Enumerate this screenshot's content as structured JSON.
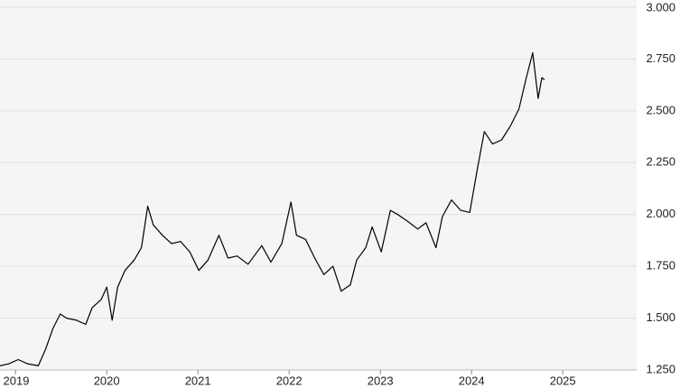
{
  "chart_data": {
    "type": "line",
    "x": [
      2018.83,
      2018.93,
      2019.03,
      2019.13,
      2019.25,
      2019.33,
      2019.41,
      2019.49,
      2019.56,
      2019.67,
      2019.77,
      2019.84,
      2019.94,
      2020.0,
      2020.06,
      2020.12,
      2020.2,
      2020.3,
      2020.38,
      2020.45,
      2020.51,
      2020.61,
      2020.71,
      2020.81,
      2020.91,
      2021.01,
      2021.11,
      2021.23,
      2021.33,
      2021.43,
      2021.55,
      2021.7,
      2021.8,
      2021.92,
      2022.02,
      2022.08,
      2022.18,
      2022.28,
      2022.38,
      2022.48,
      2022.57,
      2022.67,
      2022.74,
      2022.84,
      2022.91,
      2023.01,
      2023.11,
      2023.19,
      2023.29,
      2023.41,
      2023.5,
      2023.61,
      2023.68,
      2023.78,
      2023.88,
      2023.98,
      2024.06,
      2024.14,
      2024.23,
      2024.33,
      2024.43,
      2024.52,
      2024.6,
      2024.67,
      2024.73,
      2024.77,
      2024.8
    ],
    "series": [
      {
        "color": "#000000",
        "values": [
          1.27,
          1.28,
          1.3,
          1.28,
          1.27,
          1.35,
          1.45,
          1.52,
          1.5,
          1.49,
          1.47,
          1.55,
          1.59,
          1.65,
          1.49,
          1.65,
          1.73,
          1.78,
          1.84,
          2.04,
          1.95,
          1.9,
          1.86,
          1.87,
          1.82,
          1.73,
          1.78,
          1.9,
          1.79,
          1.8,
          1.76,
          1.85,
          1.77,
          1.86,
          2.06,
          1.9,
          1.88,
          1.79,
          1.71,
          1.75,
          1.63,
          1.66,
          1.78,
          1.84,
          1.94,
          1.82,
          2.02,
          2.0,
          1.97,
          1.93,
          1.96,
          1.84,
          1.99,
          2.07,
          2.02,
          2.01,
          2.21,
          2.4,
          2.34,
          2.36,
          2.43,
          2.51,
          2.66,
          2.78,
          2.56,
          2.66,
          2.65
        ]
      }
    ],
    "xlim": [
      2018.83,
      2025.81
    ],
    "xticks": [
      2019,
      2020,
      2021,
      2022,
      2023,
      2024,
      2025
    ],
    "ylim": [
      1.25,
      3.0
    ],
    "yticks": [
      {
        "value": 1.25,
        "label": "1.250"
      },
      {
        "value": 1.5,
        "label": "1.500"
      },
      {
        "value": 1.75,
        "label": "1.750"
      },
      {
        "value": 2.0,
        "label": "2.000"
      },
      {
        "value": 2.25,
        "label": "2.250"
      },
      {
        "value": 2.5,
        "label": "2.500"
      },
      {
        "value": 2.75,
        "label": "2.750"
      },
      {
        "value": 3.0,
        "label": "3.000"
      }
    ],
    "grid": true
  }
}
